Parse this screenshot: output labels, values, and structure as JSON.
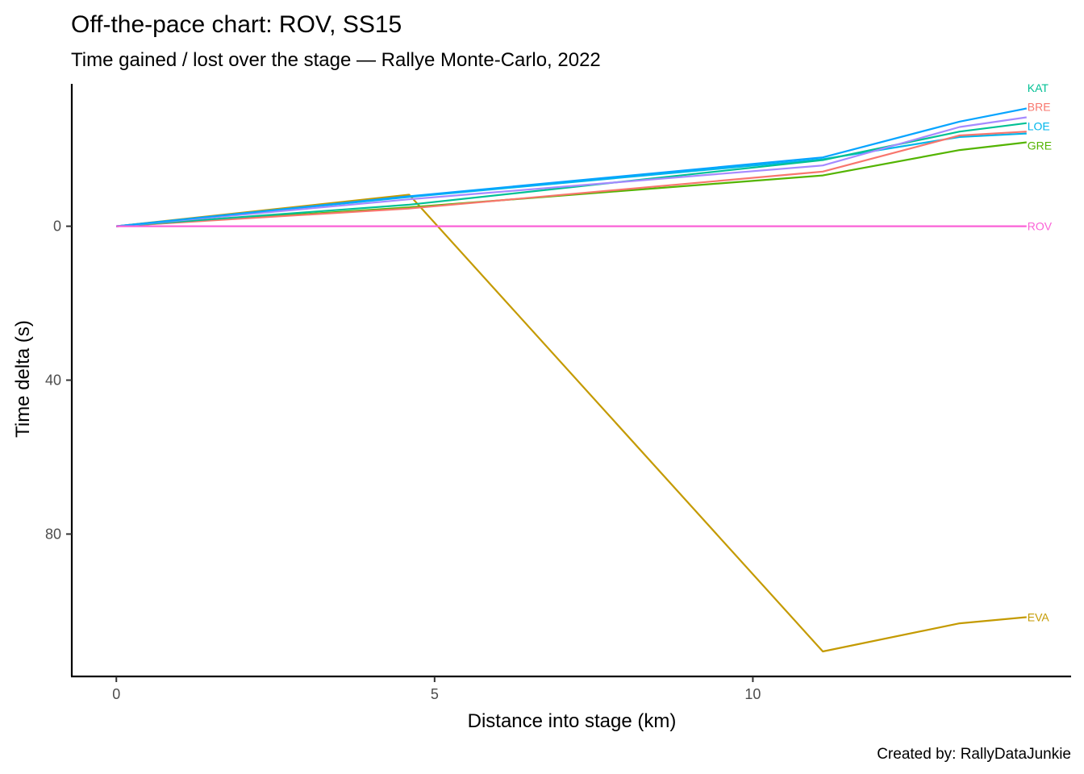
{
  "chart_data": {
    "type": "line",
    "title": "Off-the-pace chart: ROV, SS15",
    "subtitle": "Time gained / lost over the stage — Rallye Monte-Carlo, 2022",
    "xlabel": "Distance into stage (km)",
    "ylabel": "Time delta (s)",
    "caption": "Created by: RallyDataJunkie",
    "xlim": [
      -0.7,
      15.0
    ],
    "ylim": [
      -37,
      117
    ],
    "y_reversed": true,
    "x_ticks": [
      0,
      5,
      10
    ],
    "x_tick_labels": [
      "0",
      "5",
      "10"
    ],
    "y_ticks": [
      0,
      40,
      80
    ],
    "y_tick_labels": [
      "0",
      "40",
      "80"
    ],
    "grid": false,
    "legend": "none (labels at line ends)",
    "series": [
      {
        "name": "EVA",
        "color": "#C49A00",
        "x": [
          0,
          4.6,
          11.1,
          13.25,
          14.3
        ],
        "y": [
          0,
          -8.2,
          110.5,
          103.2,
          101.6
        ],
        "label_y": 101.6
      },
      {
        "name": "GRE",
        "color": "#53B400",
        "x": [
          0,
          4.6,
          11.1,
          13.25,
          14.3
        ],
        "y": [
          0,
          -4.9,
          -13.2,
          -19.8,
          -21.8
        ],
        "label_y": -21.0
      },
      {
        "name": "LOE",
        "color": "#00B6EB",
        "x": [
          0,
          4.6,
          11.1,
          13.25,
          14.3
        ],
        "y": [
          0,
          -7.6,
          -17.4,
          -23.2,
          -24.1
        ],
        "label_y": -26.0
      },
      {
        "name": "BRE",
        "color": "#F8766D",
        "x": [
          0,
          4.6,
          11.1,
          13.25,
          14.3
        ],
        "y": [
          0,
          -4.6,
          -14.2,
          -23.6,
          -24.6
        ],
        "label_y": -31.0
      },
      {
        "name": "KAT",
        "color": "#00C094",
        "x": [
          0,
          4.6,
          11.1,
          13.25,
          14.3
        ],
        "y": [
          0,
          -5.6,
          -17.2,
          -24.6,
          -26.8
        ],
        "label_y": -36.0
      },
      {
        "name": "",
        "color": "#A58AFF",
        "x": [
          0,
          4.6,
          11.1,
          13.25,
          14.3
        ],
        "y": [
          0,
          -7.0,
          -15.8,
          -25.8,
          -28.3
        ]
      },
      {
        "name": "",
        "color": "#06A4FF",
        "x": [
          0,
          4.6,
          11.1,
          13.25,
          14.3
        ],
        "y": [
          0,
          -7.8,
          -17.9,
          -27.2,
          -30.6
        ]
      },
      {
        "name": "ROV",
        "color": "#FB61D7",
        "x": [
          0,
          14.3
        ],
        "y": [
          0,
          0
        ],
        "label_y": 0
      }
    ]
  }
}
